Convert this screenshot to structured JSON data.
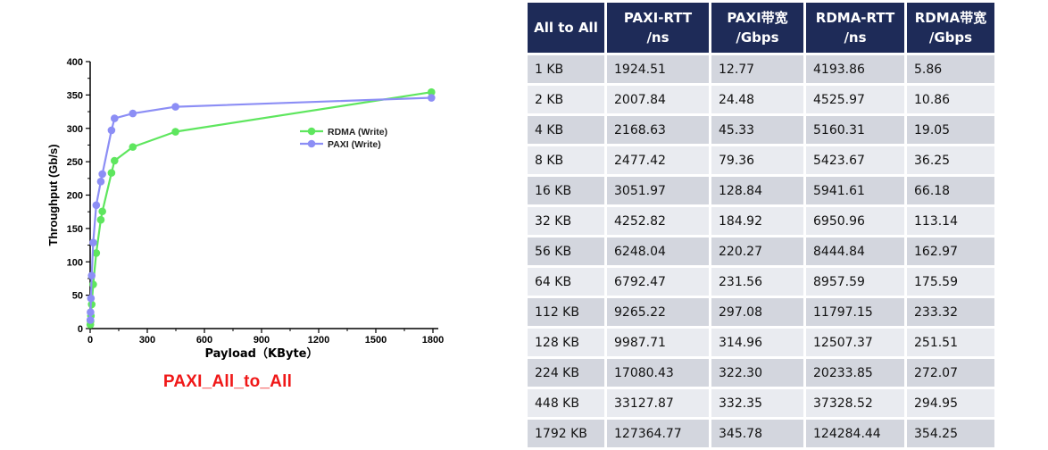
{
  "chart_data": {
    "type": "line",
    "xlabel": "Payload（KByte）",
    "ylabel": "Throughput (Gb/s)",
    "xlim": [
      0,
      1800
    ],
    "ylim": [
      0,
      400
    ],
    "xticks": [
      0,
      300,
      600,
      900,
      1200,
      1500,
      1800
    ],
    "yticks": [
      0,
      50,
      100,
      150,
      200,
      250,
      300,
      350,
      400
    ],
    "grid": false,
    "legend_position": "right",
    "series": [
      {
        "name": "RDMA (Write)",
        "color": "#5ee65e",
        "x": [
          1,
          2,
          4,
          8,
          16,
          32,
          56,
          64,
          112,
          128,
          224,
          448,
          1792
        ],
        "y": [
          5.86,
          10.86,
          19.05,
          36.25,
          66.18,
          113.14,
          162.97,
          175.59,
          233.32,
          251.51,
          272.07,
          294.95,
          354.25
        ]
      },
      {
        "name": "PAXI   (Write)",
        "color": "#8c8ef5",
        "x": [
          1,
          2,
          4,
          8,
          16,
          32,
          56,
          64,
          112,
          128,
          224,
          448,
          1792
        ],
        "y": [
          12.77,
          24.48,
          45.33,
          79.36,
          128.84,
          184.92,
          220.27,
          231.56,
          297.08,
          314.96,
          322.3,
          332.35,
          345.78
        ]
      }
    ]
  },
  "caption": "PAXI_All_to_All",
  "table": {
    "headers": [
      [
        "All to All"
      ],
      [
        "PAXI-RTT",
        "/ns"
      ],
      [
        "PAXI带宽",
        "/Gbps"
      ],
      [
        "RDMA-RTT",
        "/ns"
      ],
      [
        "RDMA带宽",
        "/Gbps"
      ]
    ],
    "rows": [
      [
        "1 KB",
        "1924.51",
        "12.77",
        "4193.86",
        "5.86"
      ],
      [
        "2 KB",
        "2007.84",
        "24.48",
        "4525.97",
        "10.86"
      ],
      [
        "4 KB",
        "2168.63",
        "45.33",
        "5160.31",
        "19.05"
      ],
      [
        "8 KB",
        "2477.42",
        "79.36",
        "5423.67",
        "36.25"
      ],
      [
        "16 KB",
        "3051.97",
        "128.84",
        "5941.61",
        "66.18"
      ],
      [
        "32 KB",
        "4252.82",
        "184.92",
        "6950.96",
        "113.14"
      ],
      [
        "56 KB",
        "6248.04",
        "220.27",
        "8444.84",
        "162.97"
      ],
      [
        "64 KB",
        "6792.47",
        "231.56",
        "8957.59",
        "175.59"
      ],
      [
        "112 KB",
        "9265.22",
        "297.08",
        "11797.15",
        "233.32"
      ],
      [
        "128 KB",
        "9987.71",
        "314.96",
        "12507.37",
        "251.51"
      ],
      [
        "224 KB",
        "17080.43",
        "322.30",
        "20233.85",
        "272.07"
      ],
      [
        "448 KB",
        "33127.87",
        "332.35",
        "37328.52",
        "294.95"
      ],
      [
        "1792 KB",
        "127364.77",
        "345.78",
        "124284.44",
        "354.25"
      ]
    ]
  }
}
